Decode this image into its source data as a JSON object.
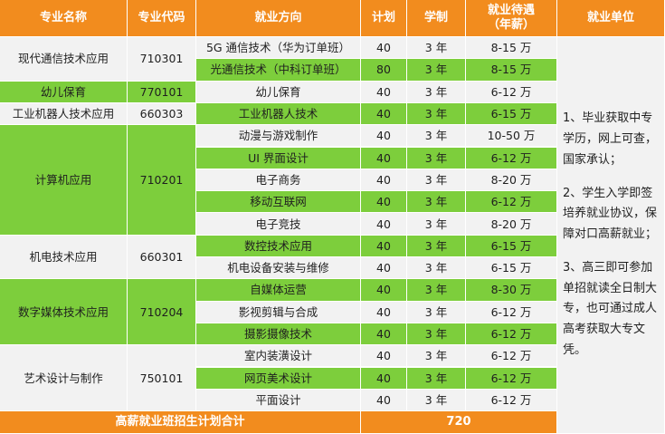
{
  "headers": {
    "major": "专业名称",
    "code": "专业代码",
    "direction": "就业方向",
    "plan": "计划",
    "duration": "学制",
    "salary": "就业待遇（年薪）",
    "employer": "就业单位"
  },
  "majors": [
    {
      "name": "现代通信技术应用",
      "code": "710301"
    },
    {
      "name": "幼儿保育",
      "code": "770101"
    },
    {
      "name": "工业机器人技术应用",
      "code": "660303"
    },
    {
      "name": "计算机应用",
      "code": "710201"
    },
    {
      "name": "机电技术应用",
      "code": "660301"
    },
    {
      "name": "数字媒体技术应用",
      "code": "710204"
    },
    {
      "name": "艺术设计与制作",
      "code": "750101"
    }
  ],
  "rows": [
    {
      "direction": "5G 通信技术（华为订单班）",
      "plan": "40",
      "duration": "3 年",
      "salary": "8-15 万"
    },
    {
      "direction": "光通信技术（中科订单班）",
      "plan": "80",
      "duration": "3 年",
      "salary": "8-15 万"
    },
    {
      "direction": "幼儿保育",
      "plan": "40",
      "duration": "3 年",
      "salary": "6-12 万"
    },
    {
      "direction": "工业机器人技术",
      "plan": "40",
      "duration": "3 年",
      "salary": "6-15 万"
    },
    {
      "direction": "动漫与游戏制作",
      "plan": "40",
      "duration": "3 年",
      "salary": "10-50 万"
    },
    {
      "direction": "UI 界面设计",
      "plan": "40",
      "duration": "3 年",
      "salary": "6-12 万"
    },
    {
      "direction": "电子商务",
      "plan": "40",
      "duration": "3 年",
      "salary": "8-20 万"
    },
    {
      "direction": "移动互联网",
      "plan": "40",
      "duration": "3 年",
      "salary": "6-12 万"
    },
    {
      "direction": "电子竞技",
      "plan": "40",
      "duration": "3 年",
      "salary": "8-20 万"
    },
    {
      "direction": "数控技术应用",
      "plan": "40",
      "duration": "3 年",
      "salary": "6-15 万"
    },
    {
      "direction": "机电设备安装与维修",
      "plan": "40",
      "duration": "3 年",
      "salary": "6-15 万"
    },
    {
      "direction": "自媒体运营",
      "plan": "40",
      "duration": "3 年",
      "salary": "8-30 万"
    },
    {
      "direction": "影视剪辑与合成",
      "plan": "40",
      "duration": "3 年",
      "salary": "6-12 万"
    },
    {
      "direction": "摄影摄像技术",
      "plan": "40",
      "duration": "3 年",
      "salary": "6-12 万"
    },
    {
      "direction": "室内装潢设计",
      "plan": "40",
      "duration": "3 年",
      "salary": "6-12 万"
    },
    {
      "direction": "网页美术设计",
      "plan": "40",
      "duration": "3 年",
      "salary": "6-12 万"
    },
    {
      "direction": "平面设计",
      "plan": "40",
      "duration": "3 年",
      "salary": "6-12 万"
    }
  ],
  "employer_notes": [
    "1、毕业获取中专学历，网上可查，国家承认；",
    "2、学生入学即签培养就业协议，保障对口高薪就业；",
    "3、高三即可参加单招就读全日制大专，也可通过成人高考获取大专文凭。"
  ],
  "total": {
    "label": "高薪就业班招生计划合计",
    "value": "720"
  },
  "colors": {
    "header": "#f28c1e",
    "green": "#7dce3c",
    "light": "#f2f2f2"
  }
}
